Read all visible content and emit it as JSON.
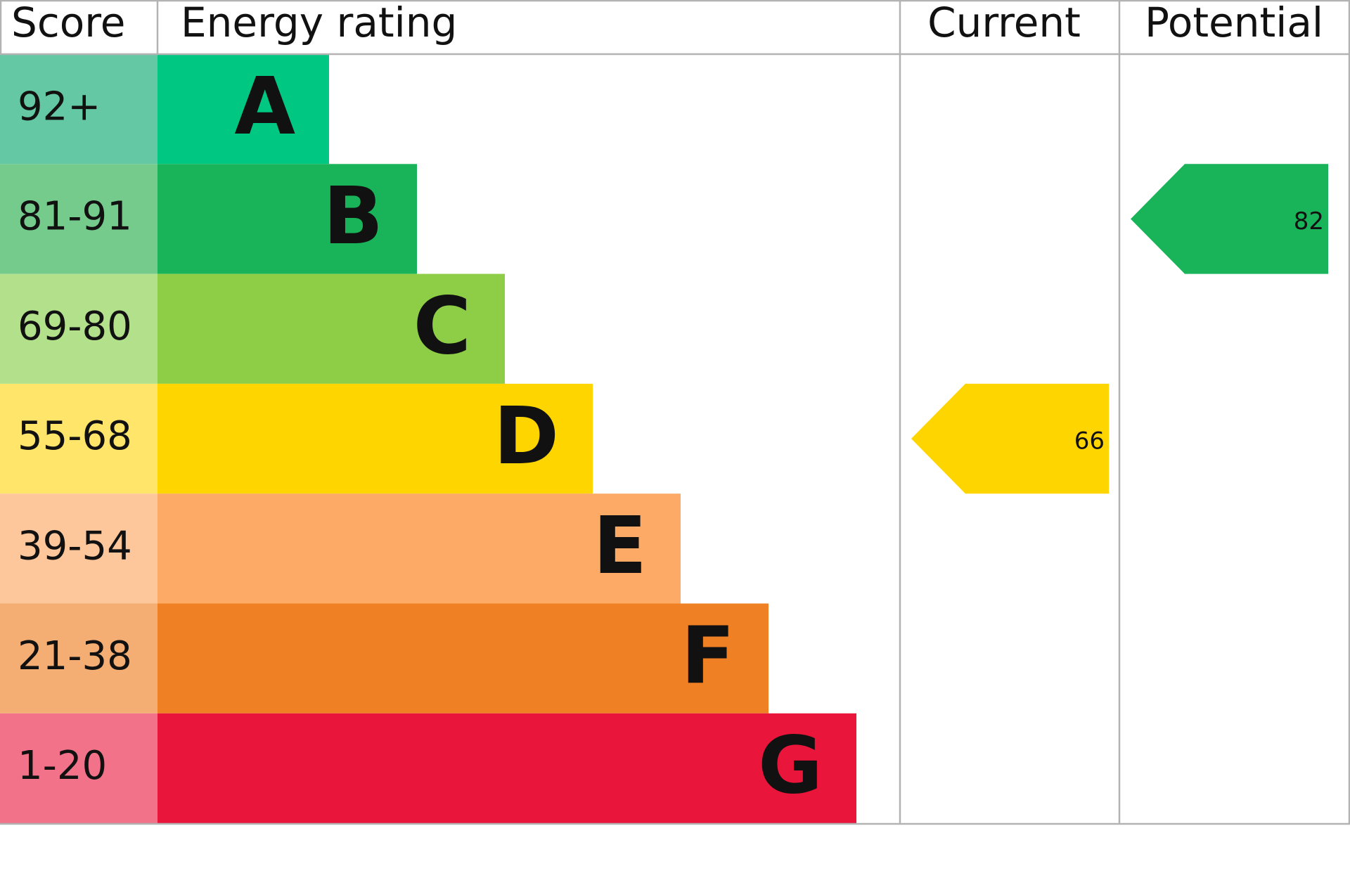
{
  "header": {
    "score": "Score",
    "energy_rating": "Energy rating",
    "current": "Current",
    "potential": "Potential"
  },
  "bands": [
    {
      "score": "92+",
      "rating": "A",
      "color": "#00c781",
      "score_color": "#64c8a4"
    },
    {
      "score": "81-91",
      "rating": "B",
      "color": "#19b459",
      "score_color": "#74cb8b"
    },
    {
      "score": "69-80",
      "rating": "C",
      "color": "#8dce46",
      "score_color": "#b3e08a"
    },
    {
      "score": "55-68",
      "rating": "D",
      "color": "#ffd500",
      "score_color": "#ffe66a"
    },
    {
      "score": "39-54",
      "rating": "E",
      "color": "#fcaa65",
      "score_color": "#fdc79b"
    },
    {
      "score": "21-38",
      "rating": "F",
      "color": "#ef8023",
      "score_color": "#f4ad73"
    },
    {
      "score": "1-20",
      "rating": "G",
      "color": "#e9153b",
      "score_color": "#f27389"
    }
  ],
  "current": 66,
  "potential": 82
}
